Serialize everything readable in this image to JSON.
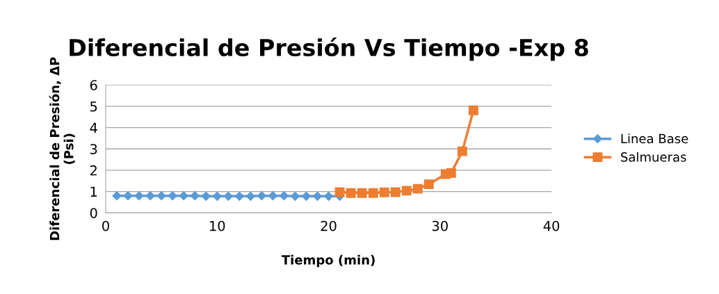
{
  "chart_data": {
    "type": "line",
    "title": "Diferencial de Presión Vs Tiempo -Exp 8",
    "xlabel": "Tiempo (min)",
    "ylabel": "Diferencial de Presión, ΔP\n(Psi)",
    "xlim": [
      0,
      40
    ],
    "xticks": [
      0,
      10,
      20,
      30,
      40
    ],
    "ylim": [
      0,
      6
    ],
    "yticks": [
      0,
      1,
      2,
      3,
      4,
      5,
      6
    ],
    "grid": "y",
    "legend": "right",
    "series": [
      {
        "name": "Linea Base",
        "color": "#5b9bd5",
        "marker": "diamond",
        "x": [
          1,
          2,
          3,
          4,
          5,
          6,
          7,
          8,
          9,
          10,
          11,
          12,
          13,
          14,
          15,
          16,
          17,
          18,
          19,
          20,
          21
        ],
        "values": [
          0.8,
          0.8,
          0.8,
          0.8,
          0.8,
          0.8,
          0.8,
          0.8,
          0.78,
          0.78,
          0.78,
          0.78,
          0.78,
          0.8,
          0.8,
          0.8,
          0.78,
          0.78,
          0.78,
          0.78,
          0.78
        ]
      },
      {
        "name": "Salmueras",
        "color": "#ed7d31",
        "marker": "square",
        "x": [
          21,
          22,
          23,
          24,
          25,
          26,
          27,
          28,
          29,
          30.5,
          31,
          32,
          33
        ],
        "values": [
          0.97,
          0.93,
          0.93,
          0.93,
          0.96,
          0.97,
          1.04,
          1.13,
          1.34,
          1.82,
          1.87,
          2.89,
          4.81
        ]
      }
    ]
  }
}
